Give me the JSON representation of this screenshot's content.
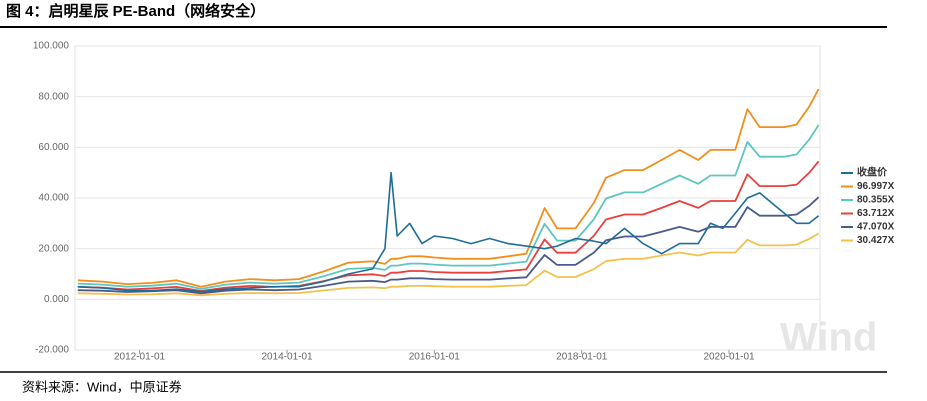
{
  "chart_data": {
    "type": "line",
    "title": "图 4：启明星辰 PE-Band（网络安全）",
    "source": "资料来源：Wind，中原证券",
    "watermark": "Wind",
    "x": [
      "2011-03-01",
      "2011-07-01",
      "2011-11-01",
      "2012-03-01",
      "2012-07-01",
      "2012-11-01",
      "2013-03-01",
      "2013-07-01",
      "2013-11-01",
      "2014-03-01",
      "2014-07-01",
      "2014-11-01",
      "2015-03-01",
      "2015-05-01",
      "2015-06-01",
      "2015-07-01",
      "2015-09-01",
      "2015-11-01",
      "2016-01-01",
      "2016-04-01",
      "2016-07-01",
      "2016-10-01",
      "2017-01-01",
      "2017-04-01",
      "2017-07-01",
      "2017-09-01",
      "2017-12-01",
      "2018-03-01",
      "2018-05-01",
      "2018-08-01",
      "2018-11-01",
      "2019-02-01",
      "2019-05-01",
      "2019-08-01",
      "2019-10-01",
      "2019-12-01",
      "2020-02-01",
      "2020-04-01",
      "2020-06-01",
      "2020-08-01",
      "2020-10-01",
      "2020-12-01",
      "2021-02-01",
      "2021-03-20"
    ],
    "xlim": [
      "2011-02-15",
      "2021-03-27"
    ],
    "xticks": [
      "2012-01-01",
      "2014-01-01",
      "2016-01-01",
      "2018-01-01",
      "2020-01-01"
    ],
    "ylim": [
      -20,
      100
    ],
    "yticks": [
      {
        "value": -20,
        "label": "-20.000"
      },
      {
        "value": 0,
        "label": "0.000"
      },
      {
        "value": 20,
        "label": "20.000"
      },
      {
        "value": 40,
        "label": "40.000"
      },
      {
        "value": 60,
        "label": "60.000"
      },
      {
        "value": 80,
        "label": "80.000"
      },
      {
        "value": 100,
        "label": "100.000"
      }
    ],
    "grid": true,
    "series": [
      {
        "name": "收盘价",
        "color": "#1c6e98",
        "values": [
          5,
          4.5,
          3.5,
          3.5,
          4,
          3,
          4,
          4.5,
          5,
          5,
          7,
          10,
          12,
          20,
          50,
          25,
          30,
          22,
          25,
          24,
          22,
          24,
          22,
          21,
          20,
          21,
          24,
          23,
          22,
          28,
          22,
          18,
          22,
          22,
          30,
          28,
          34,
          40,
          42,
          38,
          34,
          30,
          30,
          33
        ]
      },
      {
        "name": "96.997X",
        "color": "#f28e1c",
        "values": [
          7.5,
          7,
          6,
          6.5,
          7.5,
          5,
          7,
          8,
          7.5,
          8,
          11,
          14.5,
          15,
          14,
          16,
          16,
          17,
          17,
          16.5,
          16,
          16,
          16,
          17,
          18,
          36,
          28,
          28,
          38,
          48,
          51,
          51,
          55,
          59,
          55,
          59,
          59,
          59,
          75,
          68,
          68,
          68,
          69,
          76,
          83
        ]
      },
      {
        "name": "80.355X",
        "color": "#5cc6bf",
        "values": [
          6.2,
          5.8,
          5.0,
          5.4,
          6.2,
          4.1,
          5.8,
          6.6,
          6.2,
          6.6,
          9.1,
          12.0,
          12.4,
          11.6,
          13.3,
          13.3,
          14.1,
          14.1,
          13.7,
          13.3,
          13.3,
          13.3,
          14.1,
          14.9,
          29.8,
          23.2,
          23.2,
          31.5,
          39.8,
          42.2,
          42.2,
          45.6,
          48.9,
          45.6,
          48.9,
          48.9,
          48.9,
          62.1,
          56.3,
          56.3,
          56.3,
          57.2,
          63.0,
          68.8
        ]
      },
      {
        "name": "63.712X",
        "color": "#e8403c",
        "values": [
          4.9,
          4.6,
          3.9,
          4.3,
          4.9,
          3.3,
          4.6,
          5.3,
          4.9,
          5.3,
          7.2,
          9.5,
          9.9,
          9.2,
          10.5,
          10.5,
          11.2,
          11.2,
          10.8,
          10.5,
          10.5,
          10.5,
          11.2,
          11.8,
          23.6,
          18.4,
          18.4,
          25.0,
          31.5,
          33.5,
          33.5,
          36.1,
          38.8,
          36.1,
          38.8,
          38.8,
          38.8,
          49.3,
          44.7,
          44.7,
          44.7,
          45.3,
          49.9,
          54.5
        ]
      },
      {
        "name": "47.070X",
        "color": "#4a5a8a",
        "values": [
          3.6,
          3.4,
          2.9,
          3.2,
          3.6,
          2.4,
          3.4,
          3.9,
          3.6,
          3.9,
          5.3,
          7.0,
          7.3,
          6.8,
          7.8,
          7.8,
          8.3,
          8.3,
          8.0,
          7.8,
          7.8,
          7.8,
          8.3,
          8.7,
          17.5,
          13.6,
          13.6,
          18.4,
          23.3,
          24.8,
          24.8,
          26.7,
          28.6,
          26.7,
          28.6,
          28.6,
          28.6,
          36.4,
          33.0,
          33.0,
          33.0,
          33.5,
          36.9,
          40.3
        ]
      },
      {
        "name": "30.427X",
        "color": "#f2c14e",
        "values": [
          2.4,
          2.2,
          1.9,
          2.0,
          2.4,
          1.6,
          2.2,
          2.5,
          2.4,
          2.5,
          3.5,
          4.5,
          4.7,
          4.4,
          5.0,
          5.0,
          5.3,
          5.3,
          5.2,
          5.0,
          5.0,
          5.0,
          5.3,
          5.6,
          11.3,
          8.8,
          8.8,
          11.9,
          15.1,
          16.0,
          16.0,
          17.3,
          18.5,
          17.3,
          18.5,
          18.5,
          18.5,
          23.5,
          21.3,
          21.3,
          21.3,
          21.6,
          23.8,
          26.0
        ]
      }
    ]
  }
}
